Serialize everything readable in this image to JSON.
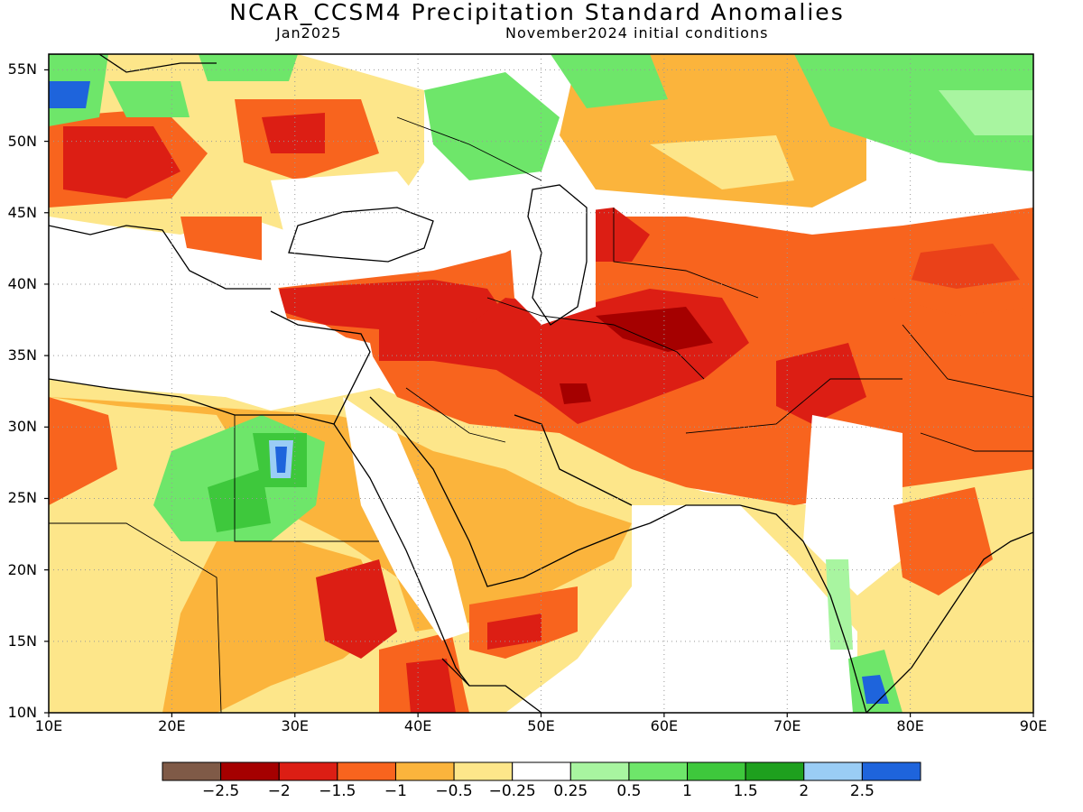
{
  "title": "NCAR_CCSM4 Precipitation Standard Anomalies",
  "valid_month": "Jan2025",
  "init_conditions": "November2024 initial conditions",
  "lat_labels": [
    "55N",
    "50N",
    "45N",
    "40N",
    "35N",
    "30N",
    "25N",
    "20N",
    "15N",
    "10N"
  ],
  "lon_labels": [
    "10E",
    "20E",
    "30E",
    "40E",
    "50E",
    "60E",
    "70E",
    "80E",
    "90E"
  ],
  "colorbar": {
    "colors": [
      "#7f5a47",
      "#a50000",
      "#dc1e14",
      "#f8641e",
      "#fbb43c",
      "#fde68a",
      "#ffffff",
      "#a8f5a0",
      "#6ee66a",
      "#3ec83c",
      "#1ea01e",
      "#9acdf5",
      "#1e64dc"
    ],
    "labels": [
      "−2.5",
      "−2",
      "−1.5",
      "−1",
      "−0.5",
      "−0.25",
      "0.25",
      "0.5",
      "1",
      "1.5",
      "2",
      "2.5"
    ]
  }
}
